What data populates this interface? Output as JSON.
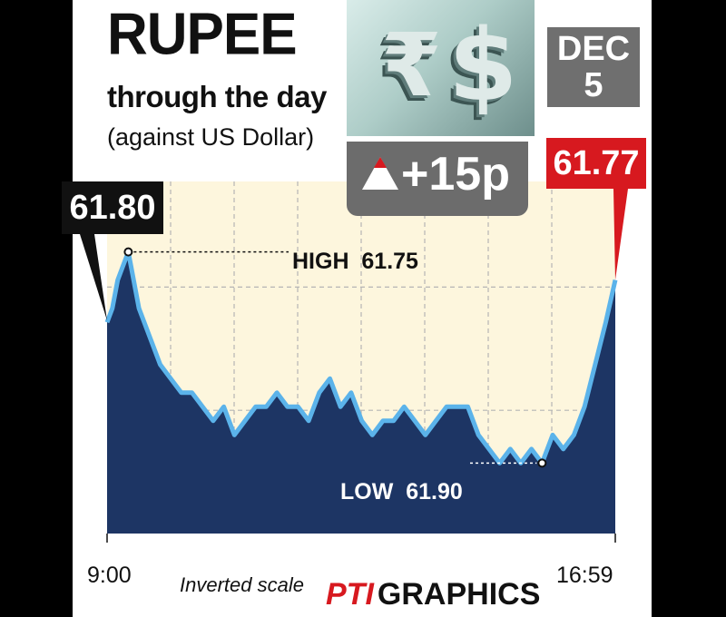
{
  "header": {
    "title": "RUPEE",
    "subtitle": "through the day",
    "subtitle2": "(against US Dollar)"
  },
  "date_badge": {
    "month": "DEC",
    "day": "5"
  },
  "change_badge": {
    "text": "+15p"
  },
  "footer": {
    "note": "Inverted scale",
    "credit_logo": "PTI",
    "credit_text": "GRAPHICS"
  },
  "colors": {
    "area": "#1d3564",
    "line": "#5bb3ea",
    "background": "#fdf6dd",
    "close_badge": "#d7191f",
    "open_badge": "#111111",
    "change_badge": "#6c6c6c",
    "date_badge": "#6f6f6f"
  },
  "chart_data": {
    "type": "area",
    "title": "RUPEE through the day (against US Dollar)",
    "y_inverted": true,
    "ylim": [
      61.95,
      61.7
    ],
    "x_ticks": [
      "9:00",
      "16:59"
    ],
    "series": [
      {
        "x": [
          "9:00",
          "9:05",
          "9:10",
          "9:15",
          "9:20",
          "9:30",
          "9:40",
          "9:50",
          "10:00",
          "10:10",
          "10:20",
          "10:30",
          "10:40",
          "10:50",
          "11:00",
          "11:10",
          "11:20",
          "11:30",
          "11:40",
          "11:50",
          "12:00",
          "12:10",
          "12:20",
          "12:30",
          "12:40",
          "12:50",
          "13:00",
          "13:10",
          "13:20",
          "13:30",
          "13:40",
          "13:50",
          "14:00",
          "14:10",
          "14:20",
          "14:30",
          "14:40",
          "14:50",
          "15:00",
          "15:10",
          "15:20",
          "15:30",
          "15:40",
          "15:50",
          "16:00",
          "16:10",
          "16:20",
          "16:30",
          "16:40",
          "16:50",
          "16:59"
        ],
        "values": [
          61.8,
          61.79,
          61.77,
          61.76,
          61.75,
          61.79,
          61.81,
          61.83,
          61.84,
          61.85,
          61.85,
          61.86,
          61.87,
          61.86,
          61.88,
          61.87,
          61.86,
          61.86,
          61.85,
          61.86,
          61.86,
          61.87,
          61.85,
          61.84,
          61.86,
          61.85,
          61.87,
          61.88,
          61.87,
          61.87,
          61.86,
          61.87,
          61.88,
          61.87,
          61.86,
          61.86,
          61.86,
          61.88,
          61.89,
          61.9,
          61.89,
          61.9,
          61.89,
          61.9,
          61.88,
          61.89,
          61.88,
          61.86,
          61.83,
          61.8,
          61.77
        ]
      }
    ],
    "annotations": [
      {
        "label": "61.80",
        "type": "open"
      },
      {
        "label": "HIGH  61.75",
        "type": "high"
      },
      {
        "label": "LOW  61.90",
        "type": "low"
      },
      {
        "label": "61.77",
        "type": "close"
      }
    ]
  }
}
